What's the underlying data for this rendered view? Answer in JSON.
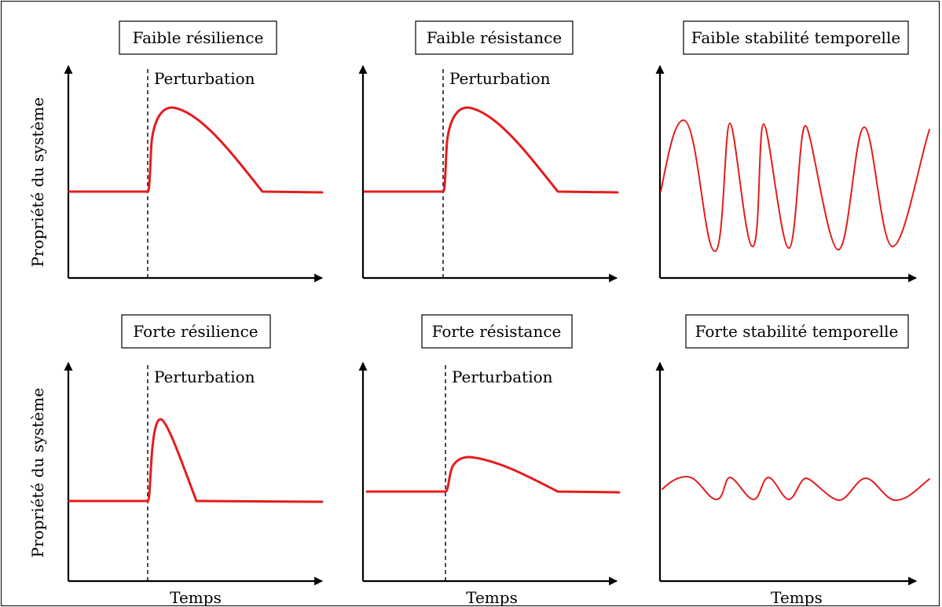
{
  "colors": {
    "curve": "#e31d1d",
    "axis": "#000000"
  },
  "ylabel": "Propriété du système",
  "xlabel": "Temps",
  "perturbation_label": "Perturbation",
  "panels": [
    {
      "title": "Faible résilience"
    },
    {
      "title": "Faible résistance"
    },
    {
      "title": "Faible stabilité temporelle"
    },
    {
      "title": "Forte résilience"
    },
    {
      "title": "Forte résistance"
    },
    {
      "title": "Forte stabilité temporelle"
    }
  ]
}
